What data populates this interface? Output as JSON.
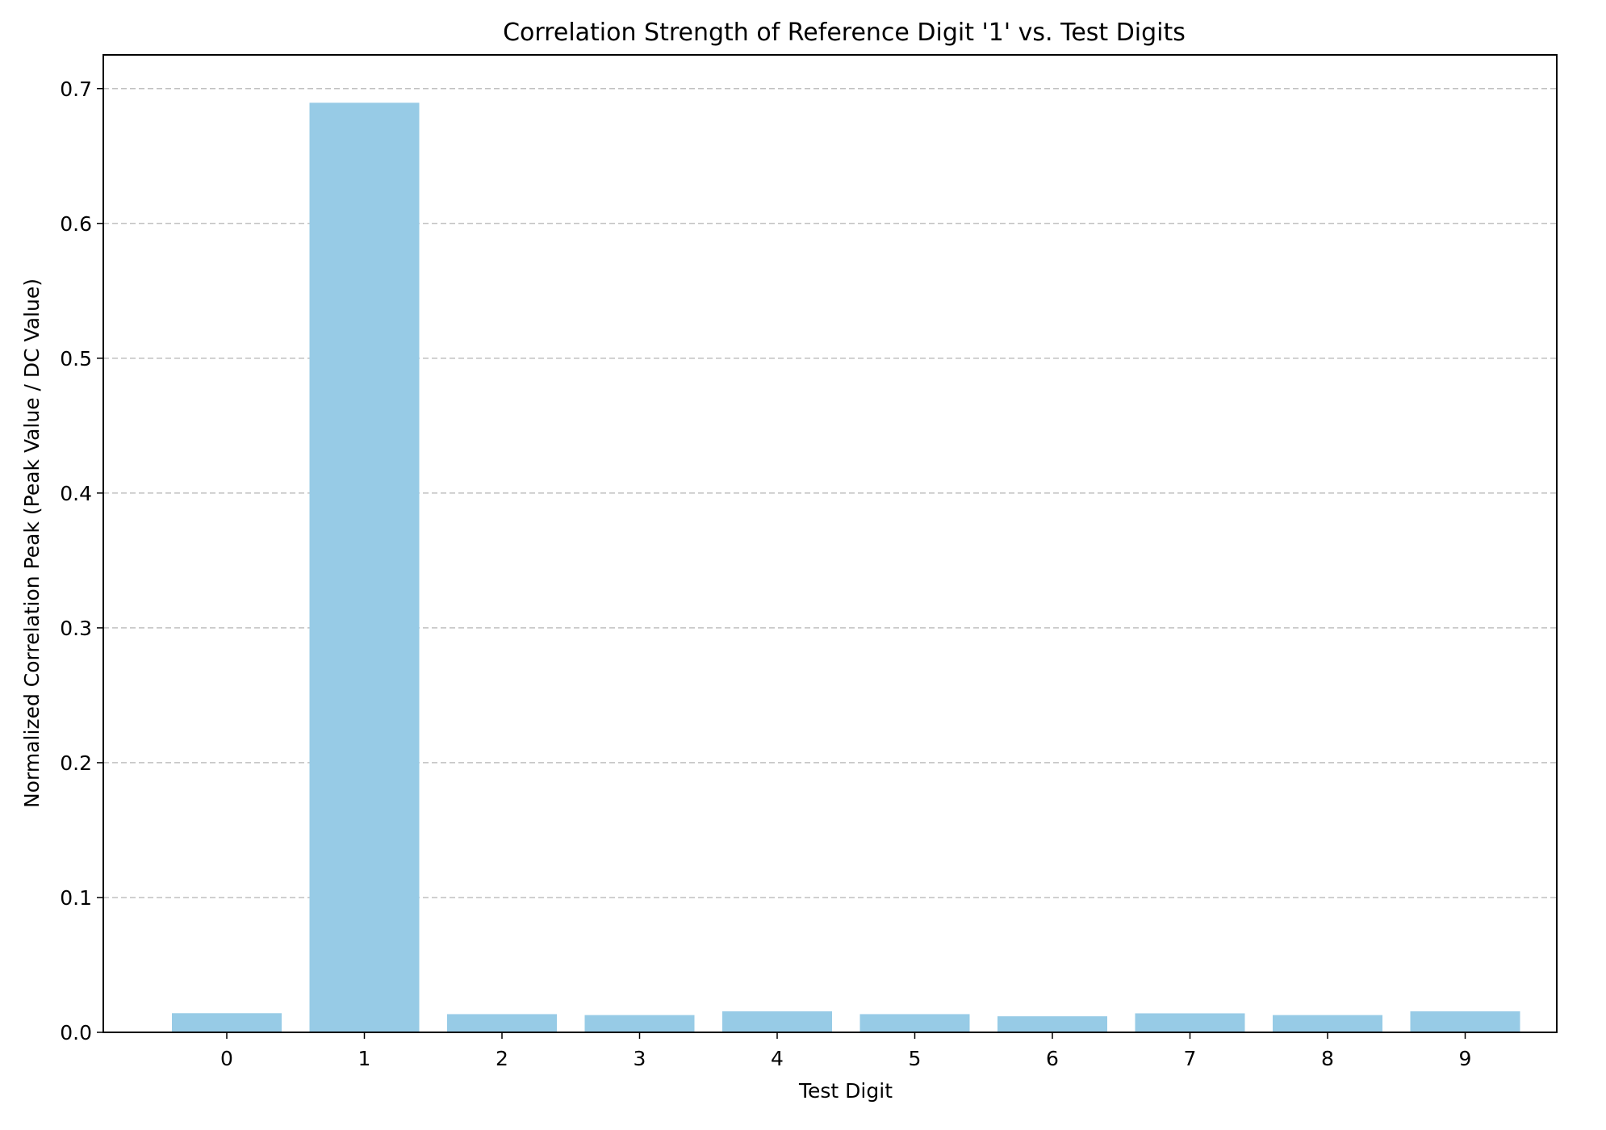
{
  "chart_data": {
    "type": "bar",
    "title": "Correlation Strength of Reference Digit '1' vs. Test Digits",
    "xlabel": "Test Digit",
    "ylabel": "Normalized Correlation Peak (Peak Value / DC Value)",
    "categories": [
      "0",
      "1",
      "2",
      "3",
      "4",
      "5",
      "6",
      "7",
      "8",
      "9"
    ],
    "values": [
      0.0142,
      0.6895,
      0.0135,
      0.0128,
      0.0156,
      0.0135,
      0.0119,
      0.0141,
      0.0128,
      0.0156
    ],
    "ylim": [
      0,
      0.725
    ],
    "yticks": [
      0.0,
      0.1,
      0.2,
      0.3,
      0.4,
      0.5,
      0.6,
      0.7
    ],
    "ytick_labels": [
      "0.0",
      "0.1",
      "0.2",
      "0.3",
      "0.4",
      "0.5",
      "0.6",
      "0.7"
    ],
    "grid": "y-axis, dashed",
    "legend": "none",
    "colors": {
      "bar": "#97cbe6",
      "grid": "#c0c0c0",
      "axis": "#000000"
    }
  }
}
